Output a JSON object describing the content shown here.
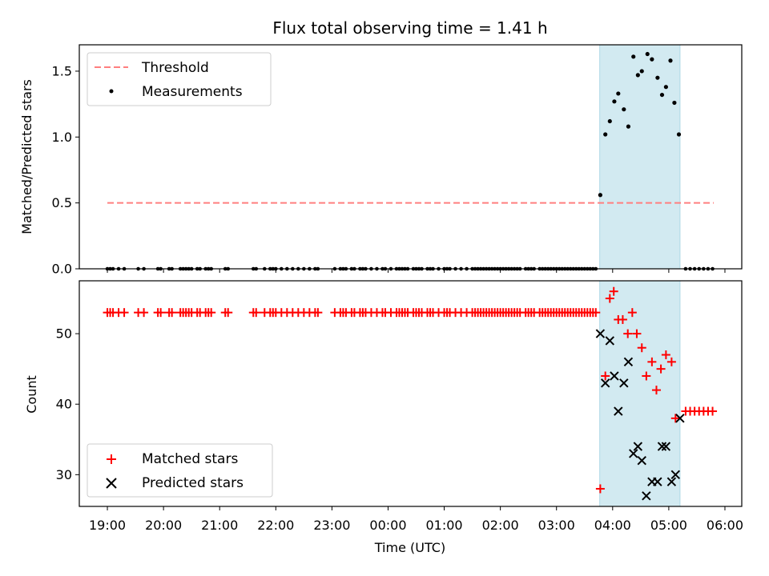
{
  "chart_data": {
    "type": "scatter",
    "title": "Flux total observing time = 1.41 h",
    "xlabel": "Time (UTC)",
    "x_ticks": [
      "19:00",
      "20:00",
      "21:00",
      "22:00",
      "23:00",
      "00:00",
      "01:00",
      "02:00",
      "03:00",
      "04:00",
      "05:00",
      "06:00"
    ],
    "x_tick_hours": [
      0,
      1,
      2,
      3,
      4,
      5,
      6,
      7,
      8,
      9,
      10,
      11
    ],
    "x_range_hours": [
      -0.5,
      11.3
    ],
    "highlight_span_hours": [
      8.77,
      10.2
    ],
    "colors": {
      "threshold": "#ff7f7f",
      "measurement": "#000000",
      "matched": "#ff0000",
      "predicted": "#000000",
      "highlight": "#add8e6"
    },
    "top_panel": {
      "ylabel": "Matched/Predicted stars",
      "ylim": [
        0,
        1.7
      ],
      "yticks": [
        0.0,
        0.5,
        1.0,
        1.5
      ],
      "ytick_labels": [
        "0.0",
        "0.5",
        "1.0",
        "1.5"
      ],
      "threshold_value": 0.5,
      "threshold_x_range": [
        0,
        10.8
      ],
      "legend": [
        "Threshold",
        "Measurements"
      ],
      "legend_location": "upper-left",
      "zero_measurement_times": [
        0.0,
        0.05,
        0.1,
        0.2,
        0.3,
        0.55,
        0.65,
        0.9,
        0.95,
        1.1,
        1.15,
        1.3,
        1.35,
        1.4,
        1.45,
        1.5,
        1.6,
        1.65,
        1.75,
        1.8,
        1.85,
        2.1,
        2.15,
        2.6,
        2.65,
        2.8,
        2.9,
        2.95,
        3.0,
        3.1,
        3.2,
        3.3,
        3.4,
        3.5,
        3.6,
        3.7,
        3.75,
        4.05,
        4.15,
        4.2,
        4.25,
        4.35,
        4.4,
        4.5,
        4.55,
        4.6,
        4.7,
        4.8,
        4.9,
        4.95,
        5.05,
        5.15,
        5.2,
        5.25,
        5.3,
        5.35,
        5.45,
        5.5,
        5.55,
        5.6,
        5.7,
        5.75,
        5.8,
        5.9,
        6.0,
        6.05,
        6.1,
        6.2,
        6.3,
        6.4,
        6.5,
        6.55,
        6.6,
        6.65,
        6.7,
        6.75,
        6.8,
        6.85,
        6.9,
        6.95,
        7.0,
        7.05,
        7.1,
        7.15,
        7.2,
        7.25,
        7.3,
        7.35,
        7.45,
        7.5,
        7.55,
        7.6,
        7.7,
        7.75,
        7.8,
        7.85,
        7.9,
        7.95,
        8.0,
        8.05,
        8.1,
        8.15,
        8.2,
        8.25,
        8.3,
        8.35,
        8.4,
        8.45,
        8.5,
        8.55,
        8.6,
        8.65,
        8.7,
        10.3,
        10.38,
        10.46,
        10.54,
        10.62,
        10.7,
        10.78
      ],
      "measurements": [
        [
          8.78,
          0.56
        ],
        [
          8.87,
          1.02
        ],
        [
          8.95,
          1.12
        ],
        [
          9.03,
          1.27
        ],
        [
          9.1,
          1.33
        ],
        [
          9.2,
          1.21
        ],
        [
          9.28,
          1.08
        ],
        [
          9.37,
          1.61
        ],
        [
          9.45,
          1.47
        ],
        [
          9.52,
          1.5
        ],
        [
          9.62,
          1.63
        ],
        [
          9.7,
          1.59
        ],
        [
          9.8,
          1.45
        ],
        [
          9.88,
          1.32
        ],
        [
          9.95,
          1.38
        ],
        [
          10.03,
          1.58
        ],
        [
          10.1,
          1.26
        ],
        [
          10.18,
          1.02
        ]
      ]
    },
    "bottom_panel": {
      "ylabel": "Count",
      "ylim": [
        25.5,
        57.5
      ],
      "yticks": [
        30,
        40,
        50
      ],
      "ytick_labels": [
        "30",
        "40",
        "50"
      ],
      "legend": [
        "Matched stars",
        "Predicted stars"
      ],
      "legend_location": "lower-left",
      "matched_baseline_value": 53,
      "matched_tail_value": 39,
      "matched_tail_times": [
        10.3,
        10.38,
        10.46,
        10.54,
        10.62,
        10.7,
        10.78
      ],
      "matched_varying": [
        [
          8.78,
          28
        ],
        [
          8.87,
          44
        ],
        [
          8.95,
          55
        ],
        [
          9.02,
          56
        ],
        [
          9.1,
          52
        ],
        [
          9.18,
          52
        ],
        [
          9.27,
          50
        ],
        [
          9.35,
          53
        ],
        [
          9.43,
          50
        ],
        [
          9.52,
          48
        ],
        [
          9.6,
          44
        ],
        [
          9.7,
          46
        ],
        [
          9.78,
          42
        ],
        [
          9.86,
          45
        ],
        [
          9.95,
          47
        ],
        [
          10.05,
          46
        ],
        [
          10.12,
          38
        ]
      ],
      "predicted": [
        [
          8.78,
          50
        ],
        [
          8.87,
          43
        ],
        [
          8.95,
          49
        ],
        [
          9.03,
          44
        ],
        [
          9.1,
          39
        ],
        [
          9.2,
          43
        ],
        [
          9.28,
          46
        ],
        [
          9.37,
          33
        ],
        [
          9.45,
          34
        ],
        [
          9.52,
          32
        ],
        [
          9.6,
          27
        ],
        [
          9.7,
          29
        ],
        [
          9.8,
          29
        ],
        [
          9.88,
          34
        ],
        [
          9.95,
          34
        ],
        [
          10.05,
          29
        ],
        [
          10.12,
          30
        ],
        [
          10.2,
          38
        ]
      ]
    }
  }
}
